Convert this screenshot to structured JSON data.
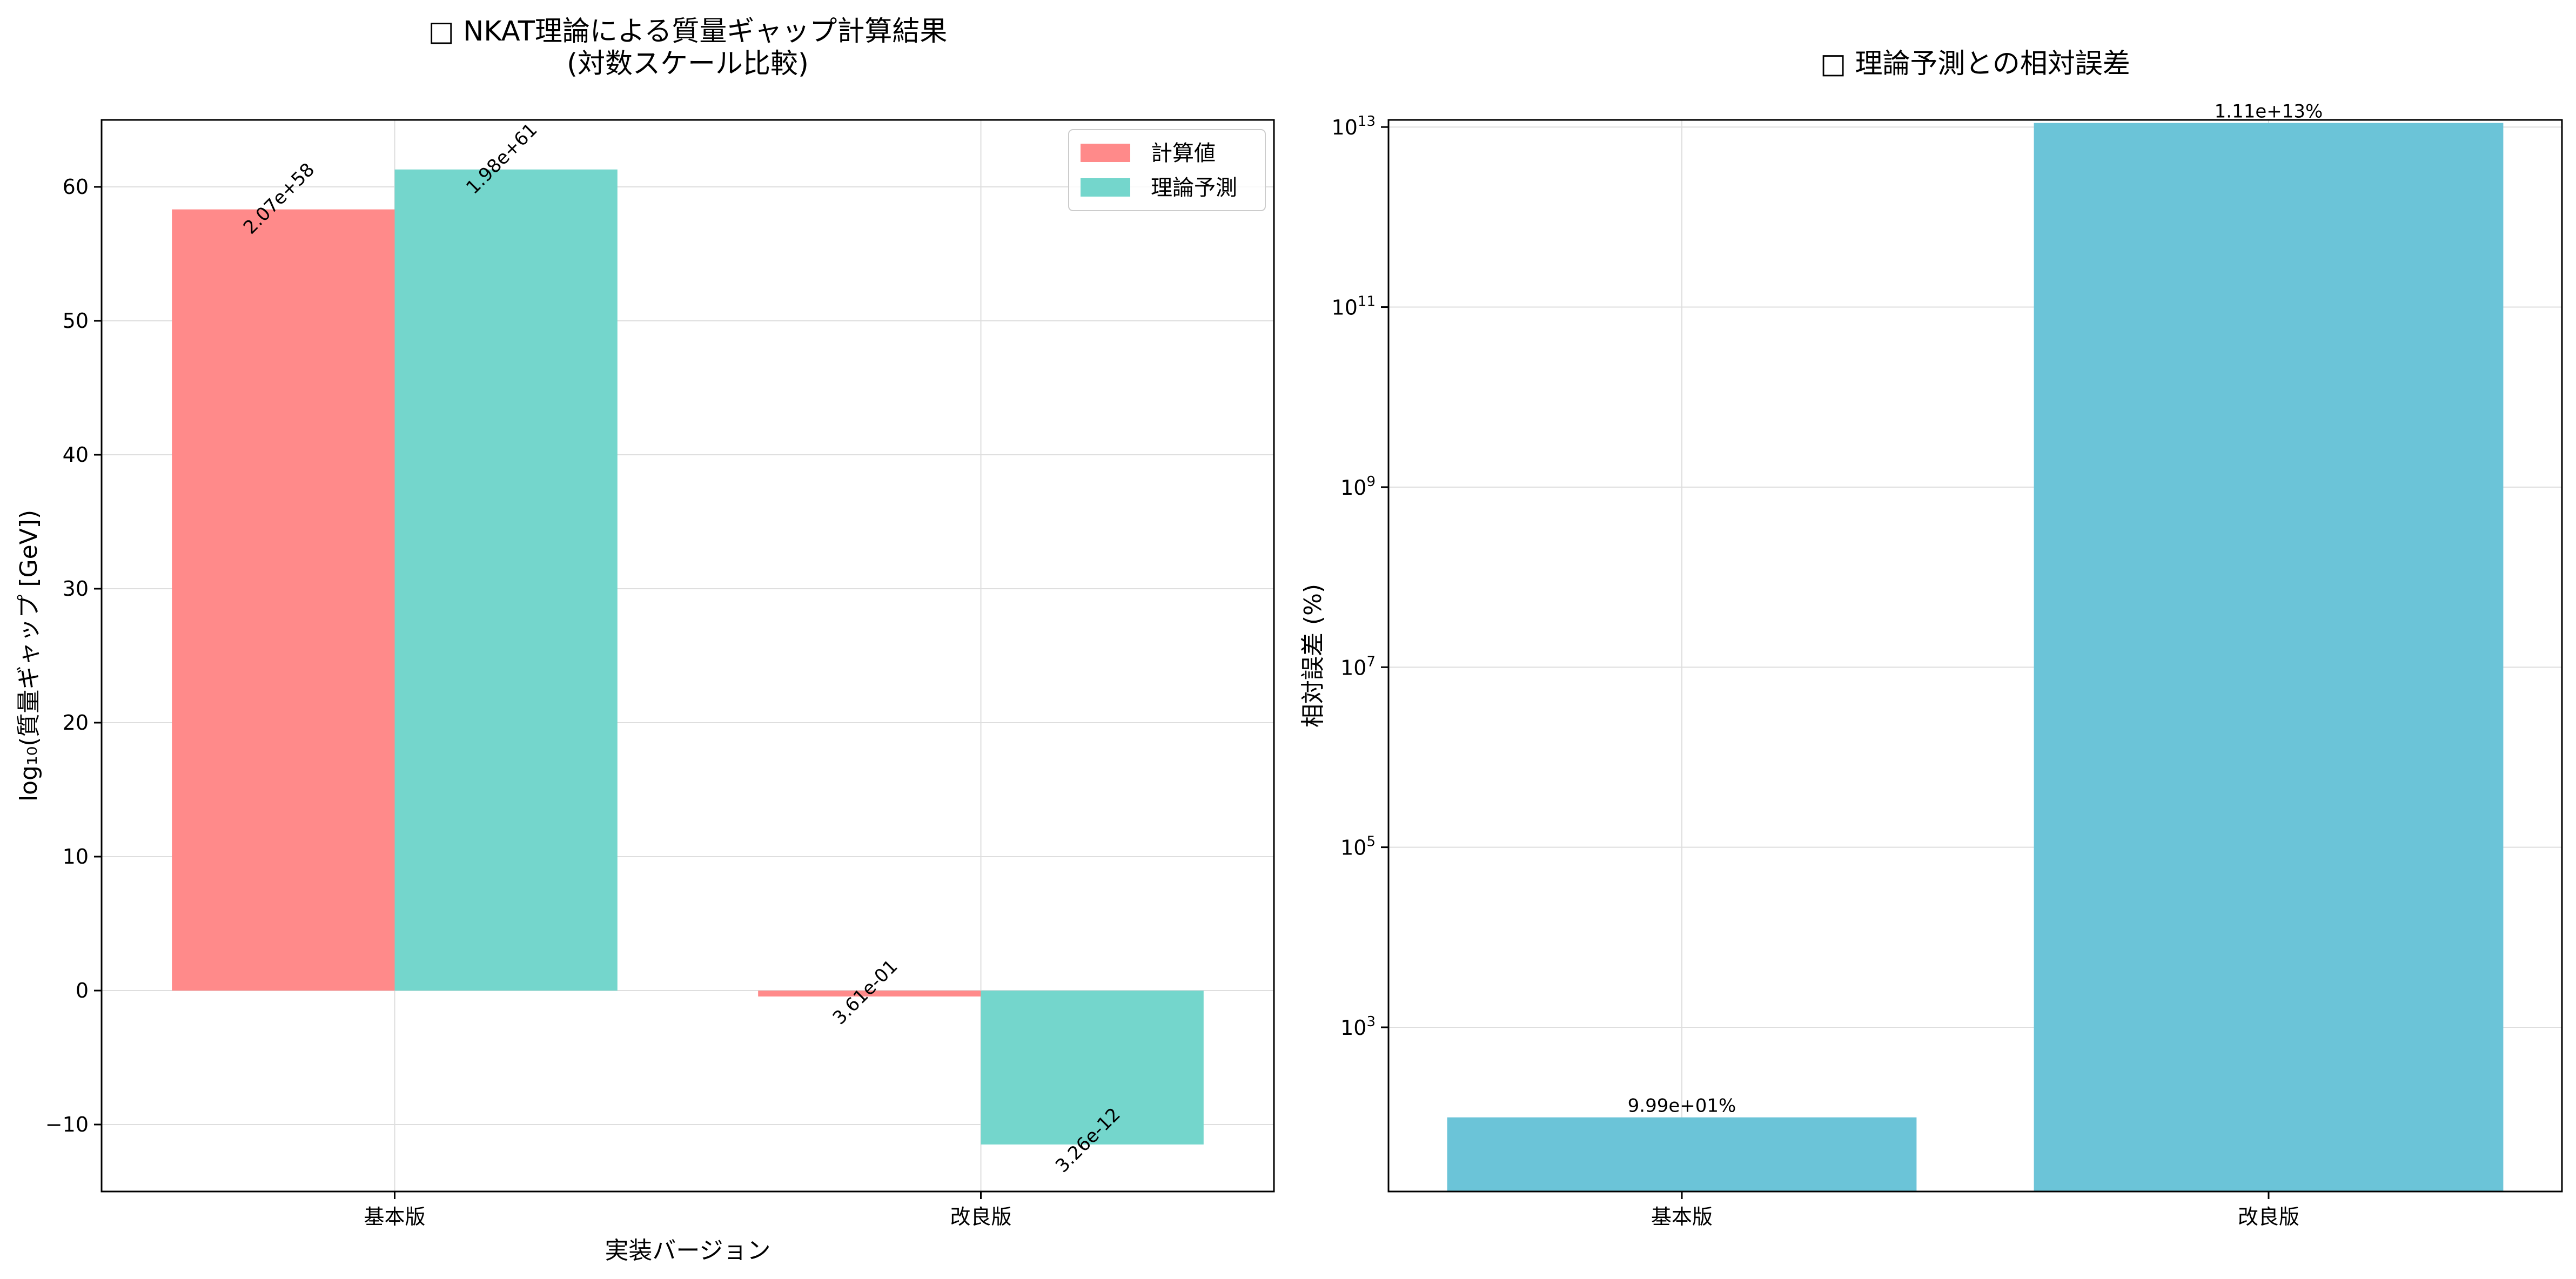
{
  "chart_data": [
    {
      "type": "bar",
      "title": "□ NKAT理論による質量ギャップ計算結果",
      "subtitle": "(対数スケール比較)",
      "xlabel": "実装バージョン",
      "ylabel": "log₁₀(質量ギャップ [GeV])",
      "categories": [
        "基本版",
        "改良版"
      ],
      "series": [
        {
          "name": "計算値",
          "color": "#ff8a8a",
          "values": [
            58.32,
            -0.44
          ],
          "labels": [
            "2.07e+58",
            "3.61e-01"
          ]
        },
        {
          "name": "理論予測",
          "color": "#74d6cc",
          "values": [
            61.3,
            -11.49
          ],
          "labels": [
            "1.98e+61",
            "3.26e-12"
          ]
        }
      ],
      "ylim": [
        -15,
        65
      ],
      "yticks": [
        -10,
        0,
        10,
        20,
        30,
        40,
        50,
        60
      ],
      "ytick_labels": [
        "−10",
        "0",
        "10",
        "20",
        "30",
        "40",
        "50",
        "60"
      ],
      "grid": true,
      "legend": "top-right"
    },
    {
      "type": "bar",
      "title": "□ 理論予測との相対誤差",
      "xlabel": "",
      "ylabel": "相対誤差 (%)",
      "categories": [
        "基本版",
        "改良版"
      ],
      "values": [
        99.9,
        11100000000000
      ],
      "labels": [
        "9.99e+01%",
        "1.11e+13%"
      ],
      "color": "#6bc4d8",
      "yscale": "log",
      "ylim": [
        15,
        12000000000000
      ],
      "yticks": [
        1000,
        100000,
        10000000,
        1000000000,
        100000000000,
        10000000000000
      ],
      "ytick_exponents": [
        "3",
        "5",
        "7",
        "9",
        "11",
        "13"
      ],
      "ytick_base": "10",
      "grid": true
    }
  ]
}
